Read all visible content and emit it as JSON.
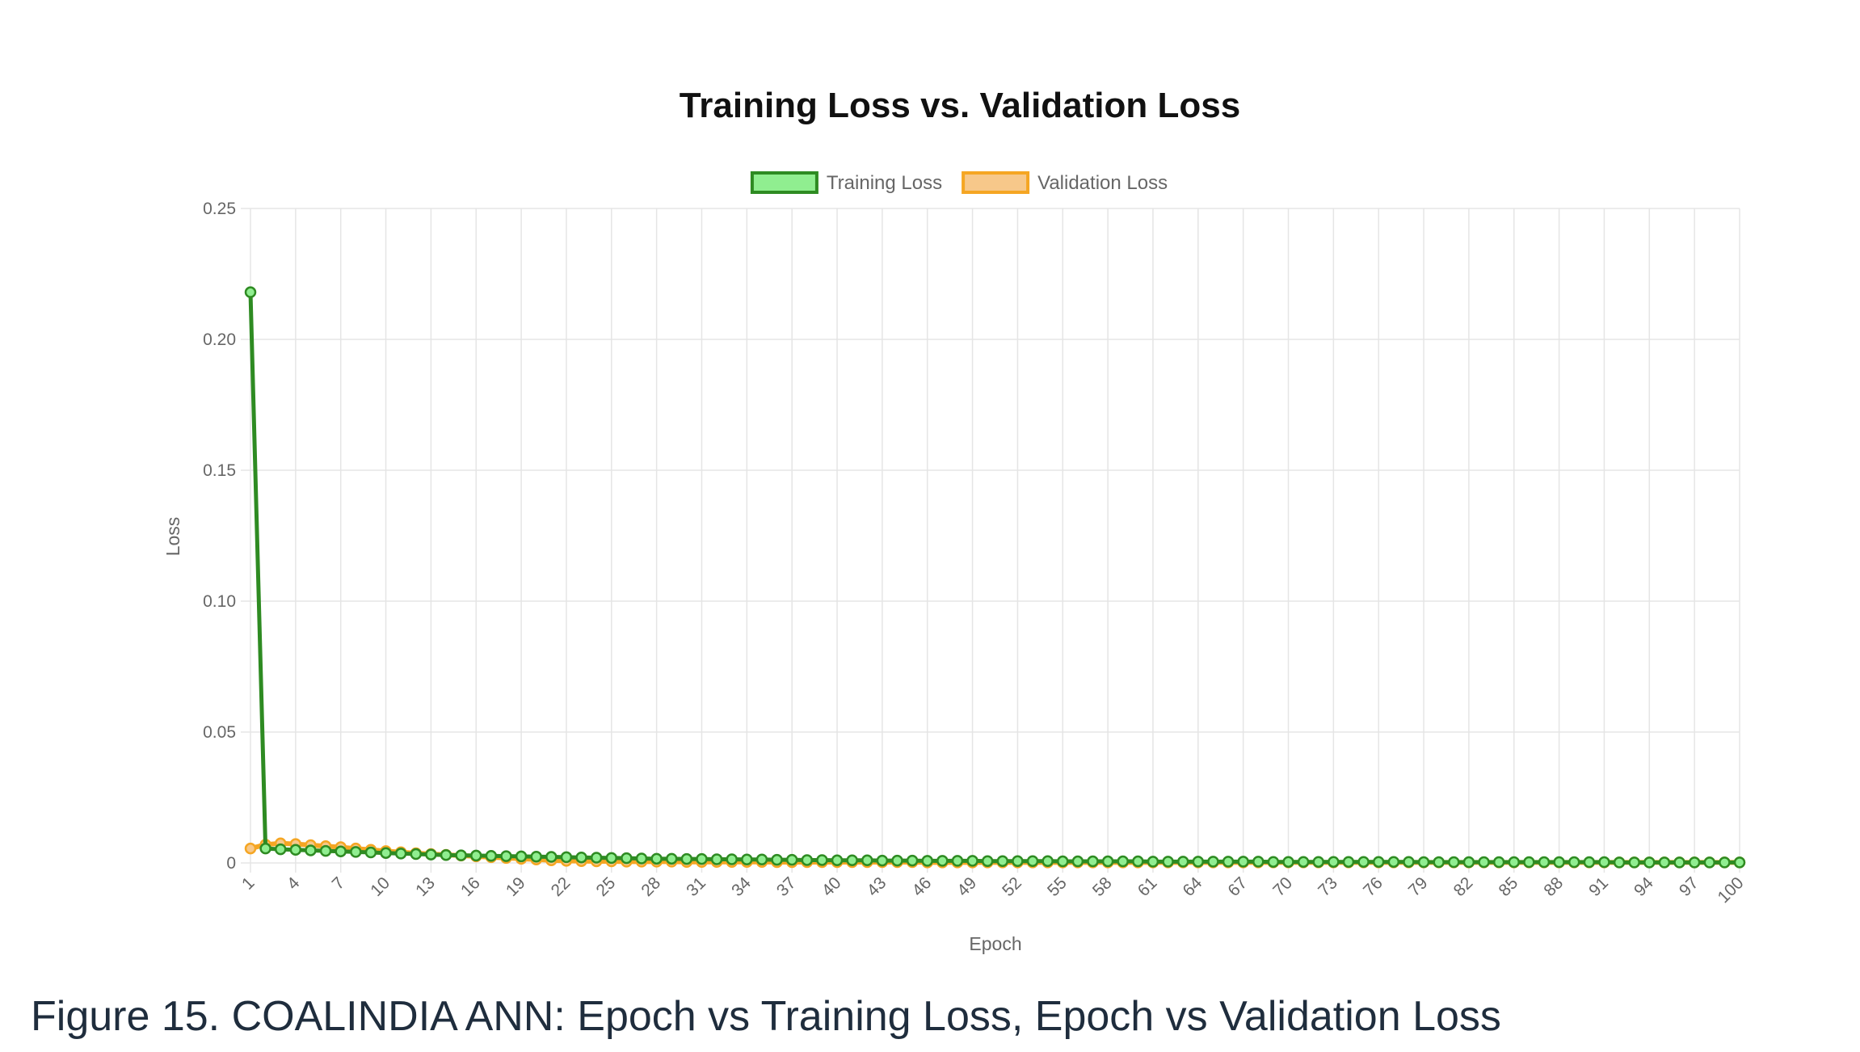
{
  "caption": "Figure 15. COALINDIA ANN: Epoch vs Training Loss, Epoch vs Validation Loss",
  "chart_data": {
    "type": "line",
    "title": "Training Loss vs. Validation Loss",
    "xlabel": "Epoch",
    "ylabel": "Loss",
    "ylim": [
      0,
      0.25
    ],
    "yticks": [
      "0",
      "0.05",
      "0.10",
      "0.15",
      "0.20",
      "0.25"
    ],
    "x": [
      1,
      2,
      3,
      4,
      5,
      6,
      7,
      8,
      9,
      10,
      11,
      12,
      13,
      14,
      15,
      16,
      17,
      18,
      19,
      20,
      21,
      22,
      23,
      24,
      25,
      26,
      27,
      28,
      29,
      30,
      31,
      32,
      33,
      34,
      35,
      36,
      37,
      38,
      39,
      40,
      41,
      42,
      43,
      44,
      45,
      46,
      47,
      48,
      49,
      50,
      51,
      52,
      53,
      54,
      55,
      56,
      57,
      58,
      59,
      60,
      61,
      62,
      63,
      64,
      65,
      66,
      67,
      68,
      69,
      70,
      71,
      72,
      73,
      74,
      75,
      76,
      77,
      78,
      79,
      80,
      81,
      82,
      83,
      84,
      85,
      86,
      87,
      88,
      89,
      90,
      91,
      92,
      93,
      94,
      95,
      96,
      97,
      98,
      99,
      100
    ],
    "xtick_labels": [
      "1",
      "4",
      "7",
      "10",
      "13",
      "16",
      "19",
      "22",
      "25",
      "28",
      "31",
      "34",
      "37",
      "40",
      "43",
      "46",
      "49",
      "52",
      "55",
      "58",
      "61",
      "64",
      "67",
      "70",
      "73",
      "76",
      "79",
      "82",
      "85",
      "88",
      "91",
      "94",
      "97",
      "100"
    ],
    "grid": true,
    "legend_position": "top",
    "series": [
      {
        "name": "Training Loss",
        "color": "#2e8b22",
        "fill": "#90ee90",
        "values": [
          0.218,
          0.0055,
          0.0052,
          0.005,
          0.0048,
          0.0046,
          0.0044,
          0.0042,
          0.004,
          0.0038,
          0.0036,
          0.0034,
          0.0032,
          0.003,
          0.0029,
          0.0028,
          0.0027,
          0.0026,
          0.0025,
          0.0024,
          0.0023,
          0.0022,
          0.0021,
          0.002,
          0.0019,
          0.0018,
          0.0017,
          0.0016,
          0.0016,
          0.0015,
          0.0015,
          0.0014,
          0.0014,
          0.0013,
          0.0013,
          0.0012,
          0.0012,
          0.0011,
          0.0011,
          0.001,
          0.001,
          0.001,
          0.0009,
          0.0009,
          0.0009,
          0.0008,
          0.0008,
          0.0008,
          0.0008,
          0.0007,
          0.0007,
          0.0007,
          0.0007,
          0.0007,
          0.0006,
          0.0006,
          0.0006,
          0.0006,
          0.0006,
          0.0006,
          0.0005,
          0.0005,
          0.0005,
          0.0005,
          0.0005,
          0.0005,
          0.0005,
          0.0005,
          0.0004,
          0.0004,
          0.0004,
          0.0004,
          0.0004,
          0.0004,
          0.0004,
          0.0004,
          0.0004,
          0.0004,
          0.0003,
          0.0003,
          0.0003,
          0.0003,
          0.0003,
          0.0003,
          0.0003,
          0.0003,
          0.0003,
          0.0003,
          0.0003,
          0.0003,
          0.0003,
          0.0002,
          0.0002,
          0.0002,
          0.0002,
          0.0002,
          0.0002,
          0.0002,
          0.0002,
          0.0002
        ]
      },
      {
        "name": "Validation Loss",
        "color": "#f5a623",
        "fill": "#f7c88a",
        "values": [
          0.0055,
          0.007,
          0.0075,
          0.0072,
          0.0068,
          0.0064,
          0.006,
          0.0055,
          0.005,
          0.0045,
          0.0041,
          0.0037,
          0.0034,
          0.0031,
          0.0028,
          0.0025,
          0.0022,
          0.0019,
          0.0016,
          0.0013,
          0.001,
          0.0008,
          0.0007,
          0.0006,
          0.0006,
          0.0005,
          0.0005,
          0.0005,
          0.0005,
          0.0004,
          0.0004,
          0.0004,
          0.0004,
          0.0004,
          0.0004,
          0.0003,
          0.0003,
          0.0003,
          0.0003,
          0.0003,
          0.0003,
          0.0003,
          0.0003,
          0.0003,
          0.0003,
          0.0002,
          0.0002,
          0.0002,
          0.0002,
          0.0002,
          0.0002,
          0.0002,
          0.0002,
          0.0002,
          0.0002,
          0.0002,
          0.0002,
          0.0002,
          0.0002,
          0.0002,
          0.0002,
          0.0002,
          0.0002,
          0.0002,
          0.0002,
          0.0002,
          0.0002,
          0.0002,
          0.0002,
          0.0002,
          0.0002,
          0.0002,
          0.0002,
          0.0002,
          0.0002,
          0.0002,
          0.0002,
          0.0002,
          0.0002,
          0.0002,
          0.0002,
          0.0002,
          0.0002,
          0.0002,
          0.0002,
          0.0002,
          0.0002,
          0.0002,
          0.0002,
          0.0002,
          0.0002,
          0.0002,
          0.0002,
          0.0002,
          0.0002,
          0.0002,
          0.0002,
          0.0002,
          0.0002,
          0.0002
        ]
      }
    ]
  }
}
